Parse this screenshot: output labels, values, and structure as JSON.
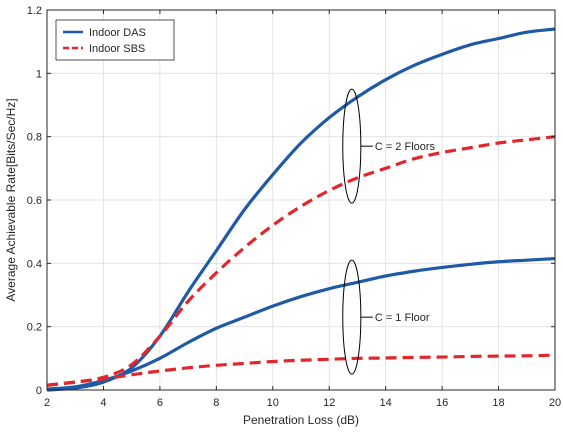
{
  "chart_data": {
    "type": "line",
    "title": "",
    "xlabel": "Penetration Loss (dB)",
    "ylabel": "Average Achievable Rate[Bits/Sec/Hz]",
    "xlim": [
      2,
      20
    ],
    "ylim": [
      0,
      1.2
    ],
    "xticks": [
      2,
      4,
      6,
      8,
      10,
      12,
      14,
      16,
      18,
      20
    ],
    "yticks": [
      0,
      0.2,
      0.4,
      0.6,
      0.8,
      1,
      1.2
    ],
    "grid": true,
    "legend_position": "top-left",
    "legend": [
      {
        "label": "Indoor DAS",
        "color": "#1f5aa6",
        "style": "solid"
      },
      {
        "label": "Indoor SBS",
        "color": "#e3262c",
        "style": "dashed"
      }
    ],
    "series": [
      {
        "legend_index": 0,
        "x": [
          2,
          3,
          4,
          5,
          6,
          7,
          8,
          9,
          10,
          11,
          12,
          13,
          14,
          15,
          16,
          17,
          18,
          19,
          20
        ],
        "y": [
          0.0,
          0.006,
          0.025,
          0.07,
          0.17,
          0.31,
          0.44,
          0.57,
          0.68,
          0.78,
          0.86,
          0.925,
          0.98,
          1.025,
          1.06,
          1.09,
          1.11,
          1.13,
          1.14
        ]
      },
      {
        "legend_index": 1,
        "x": [
          2,
          3,
          4,
          5,
          6,
          7,
          8,
          9,
          10,
          11,
          12,
          13,
          14,
          15,
          16,
          17,
          18,
          19,
          20
        ],
        "y": [
          0.015,
          0.025,
          0.04,
          0.08,
          0.17,
          0.28,
          0.37,
          0.45,
          0.52,
          0.58,
          0.63,
          0.67,
          0.7,
          0.73,
          0.75,
          0.765,
          0.78,
          0.79,
          0.8
        ]
      },
      {
        "legend_index": 0,
        "x": [
          2,
          3,
          4,
          5,
          6,
          7,
          8,
          9,
          10,
          11,
          12,
          13,
          14,
          15,
          16,
          17,
          18,
          19,
          20
        ],
        "y": [
          0.003,
          0.01,
          0.03,
          0.06,
          0.1,
          0.15,
          0.195,
          0.23,
          0.265,
          0.295,
          0.32,
          0.34,
          0.36,
          0.375,
          0.387,
          0.397,
          0.405,
          0.41,
          0.415
        ]
      },
      {
        "legend_index": 1,
        "x": [
          2,
          3,
          4,
          5,
          6,
          7,
          8,
          9,
          10,
          11,
          12,
          13,
          14,
          15,
          16,
          17,
          18,
          19,
          20
        ],
        "y": [
          0.015,
          0.025,
          0.035,
          0.048,
          0.06,
          0.07,
          0.078,
          0.084,
          0.09,
          0.094,
          0.097,
          0.1,
          0.101,
          0.103,
          0.104,
          0.106,
          0.107,
          0.108,
          0.11
        ]
      }
    ],
    "annotations": [
      {
        "text": "C = 2 Floors",
        "ellipse_center": [
          12.8,
          0.77
        ],
        "ellipse_rx_data": 0.32,
        "ellipse_ry_data": 0.18
      },
      {
        "text": "C = 1 Floor",
        "ellipse_center": [
          12.8,
          0.23
        ],
        "ellipse_rx_data": 0.32,
        "ellipse_ry_data": 0.18
      }
    ]
  }
}
